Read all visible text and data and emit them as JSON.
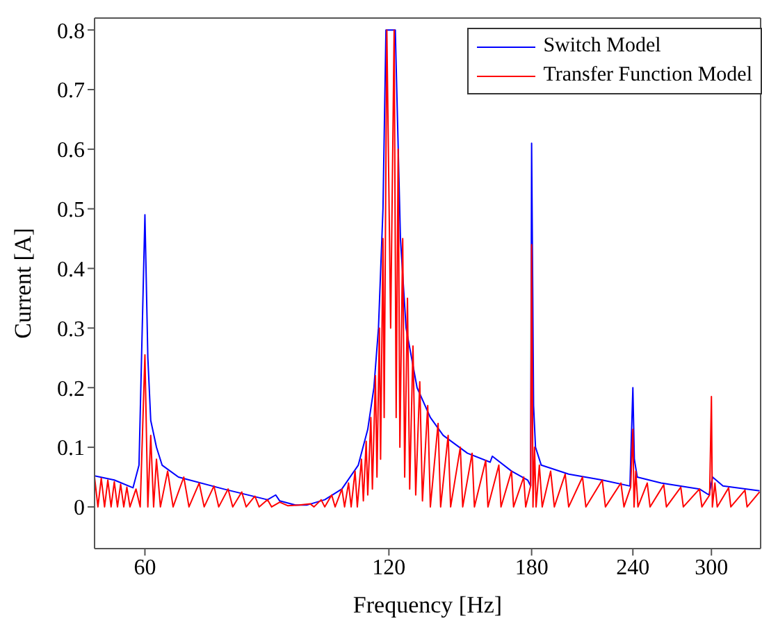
{
  "chart_data": {
    "type": "line",
    "xlabel": "Frequency [Hz]",
    "ylabel": "Current [A]",
    "log": "x",
    "xlim": [
      52,
      345
    ],
    "xticks": [
      60,
      120,
      180,
      240,
      300
    ],
    "ylim": [
      -0.07,
      0.82
    ],
    "yticks": [
      0,
      0.1,
      0.2,
      0.3,
      0.4,
      0.5,
      0.6,
      0.7,
      0.8
    ],
    "legend": "top right",
    "marker": "none",
    "line_style": "solid",
    "series": [
      {
        "name": "Switch Model",
        "color": "#0000ff",
        "x": [
          52,
          55,
          58,
          59,
          60,
          60.5,
          61,
          62,
          63,
          66,
          75,
          85,
          87,
          88,
          92,
          95,
          100,
          105,
          110,
          113,
          115,
          116.5,
          118,
          119,
          122.2,
          124,
          126,
          130,
          135,
          140,
          150,
          160,
          161,
          170,
          178,
          179.5,
          180,
          181,
          182,
          185,
          200,
          220,
          238,
          240,
          241,
          243,
          260,
          290,
          298,
          301,
          310,
          344
        ],
        "values": [
          0.052,
          0.045,
          0.032,
          0.07,
          0.49,
          0.25,
          0.145,
          0.1,
          0.07,
          0.05,
          0.03,
          0.012,
          0.02,
          0.01,
          0.003,
          0.003,
          0.012,
          0.03,
          0.07,
          0.13,
          0.2,
          0.3,
          0.5,
          0.8,
          0.8,
          0.45,
          0.3,
          0.2,
          0.15,
          0.12,
          0.09,
          0.075,
          0.085,
          0.06,
          0.045,
          0.035,
          0.61,
          0.17,
          0.1,
          0.07,
          0.055,
          0.045,
          0.035,
          0.2,
          0.08,
          0.05,
          0.04,
          0.03,
          0.02,
          0.05,
          0.035,
          0.027
        ]
      },
      {
        "name": "Transfer Function Model",
        "color": "#ff0000",
        "x": [
          52,
          52.5,
          53,
          53.5,
          54,
          54.5,
          55,
          55.5,
          56,
          56.5,
          57,
          57.5,
          58.5,
          59.2,
          60,
          60.5,
          61,
          61.5,
          62,
          62.7,
          64,
          65,
          67,
          68,
          70,
          71,
          73,
          74,
          76,
          77,
          79,
          80,
          82,
          83,
          85,
          86,
          88,
          90,
          93,
          96,
          97,
          99,
          100,
          102,
          103,
          105,
          105.8,
          107,
          107.8,
          109,
          109.7,
          111,
          111.6,
          112.5,
          113,
          114,
          114.5,
          115.5,
          116,
          116.8,
          117.2,
          118,
          118.4,
          119.3,
          120.6,
          121.8,
          122.5,
          123.2,
          123.8,
          124.8,
          125.5,
          126.5,
          127.3,
          128.5,
          129.5,
          131,
          132,
          134,
          135,
          138,
          139,
          142,
          143,
          147,
          148,
          152,
          153,
          158,
          159,
          164,
          165,
          170,
          171,
          176,
          177,
          179.5,
          180,
          180.7,
          181.5,
          182.3,
          184,
          185.5,
          190,
          192,
          198,
          200,
          208,
          210,
          220,
          222,
          232,
          234,
          238.5,
          240,
          240.8,
          242,
          243.5,
          250,
          252,
          262,
          264,
          275,
          277,
          290,
          292,
          298.5,
          300,
          300.8,
          303,
          305,
          315,
          317,
          330,
          332,
          344
        ],
        "values": [
          0.05,
          0,
          0.048,
          0,
          0.045,
          0,
          0.042,
          0,
          0.038,
          0,
          0.033,
          0,
          0.03,
          0,
          0.255,
          0,
          0.12,
          0,
          0.08,
          0,
          0.06,
          0,
          0.05,
          0,
          0.04,
          0,
          0.035,
          0,
          0.03,
          0,
          0.025,
          0,
          0.018,
          0,
          0.012,
          0,
          0.008,
          0.002,
          0.003,
          0.005,
          0,
          0.012,
          0,
          0.02,
          0,
          0.03,
          0,
          0.04,
          0,
          0.06,
          0,
          0.08,
          0.01,
          0.11,
          0.02,
          0.15,
          0.03,
          0.22,
          0.05,
          0.3,
          0.08,
          0.45,
          0.15,
          0.8,
          0.3,
          0.8,
          0.15,
          0.6,
          0.1,
          0.45,
          0.05,
          0.35,
          0.03,
          0.27,
          0.02,
          0.21,
          0.01,
          0.17,
          0,
          0.14,
          0,
          0.12,
          0,
          0.1,
          0,
          0.09,
          0,
          0.078,
          0,
          0.07,
          0,
          0.06,
          0,
          0.05,
          0,
          0.035,
          0.44,
          0,
          0.1,
          0,
          0.07,
          0,
          0.06,
          0,
          0.055,
          0,
          0.05,
          0,
          0.045,
          0,
          0.04,
          0,
          0.033,
          0.13,
          0,
          0.06,
          0,
          0.04,
          0,
          0.037,
          0,
          0.033,
          0,
          0.03,
          0,
          0.02,
          0.185,
          0,
          0.04,
          0,
          0.032,
          0,
          0.028,
          0,
          0.025
        ]
      }
    ]
  }
}
